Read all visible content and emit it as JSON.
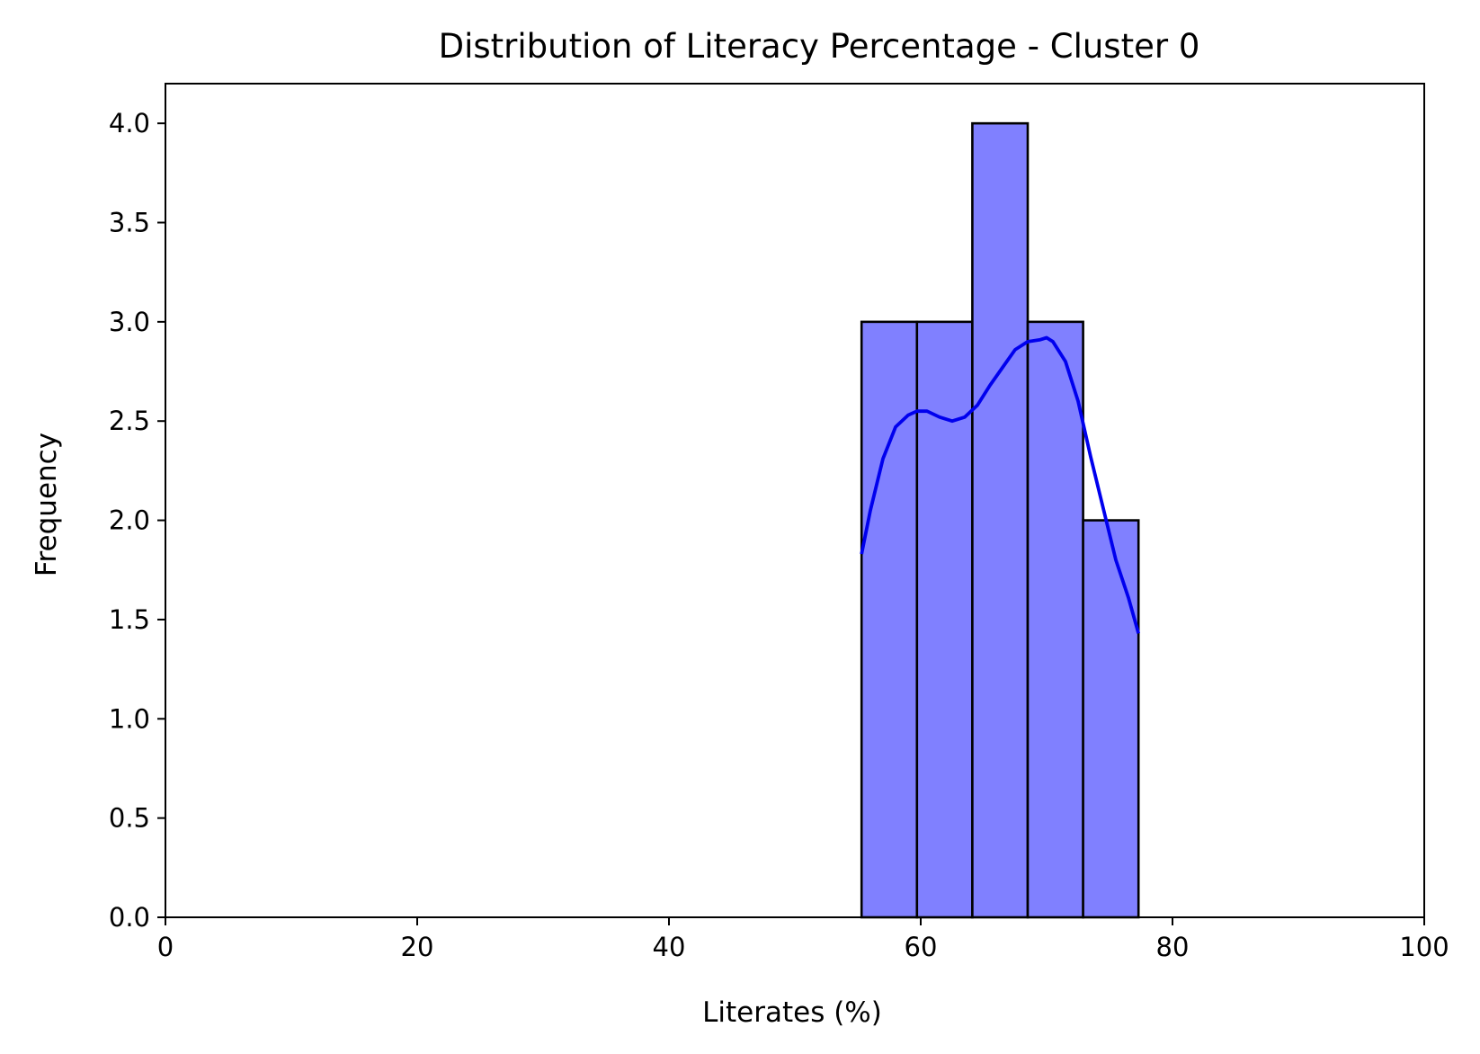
{
  "chart_data": {
    "type": "bar",
    "subtype": "histogram",
    "title": "Distribution of Literacy Percentage - Cluster 0",
    "xlabel": "Literates (%)",
    "ylabel": "Frequency",
    "xlim": [
      0,
      100
    ],
    "ylim": [
      0,
      4.2
    ],
    "xticks": [
      "0",
      "20",
      "40",
      "60",
      "80",
      "100"
    ],
    "yticks": [
      "0.0",
      "0.5",
      "1.0",
      "1.5",
      "2.0",
      "2.5",
      "3.0",
      "3.5",
      "4.0"
    ],
    "grid": false,
    "legend": "none",
    "bins": [
      {
        "x0": 55.3,
        "x1": 59.7,
        "count": 3
      },
      {
        "x0": 59.7,
        "x1": 64.1,
        "count": 3
      },
      {
        "x0": 64.1,
        "x1": 68.5,
        "count": 4
      },
      {
        "x0": 68.5,
        "x1": 72.9,
        "count": 3
      },
      {
        "x0": 72.9,
        "x1": 77.3,
        "count": 2
      }
    ],
    "kde": {
      "x": [
        55.3,
        56.0,
        57.0,
        58.0,
        59.0,
        59.7,
        60.5,
        61.5,
        62.5,
        63.5,
        64.5,
        65.5,
        66.5,
        67.5,
        68.5,
        69.5,
        70.0,
        70.5,
        71.5,
        72.5,
        73.5,
        74.5,
        75.5,
        76.5,
        77.3
      ],
      "y": [
        1.83,
        2.05,
        2.31,
        2.47,
        2.53,
        2.55,
        2.55,
        2.52,
        2.5,
        2.52,
        2.58,
        2.68,
        2.77,
        2.86,
        2.9,
        2.91,
        2.92,
        2.9,
        2.8,
        2.6,
        2.32,
        2.06,
        1.8,
        1.61,
        1.43
      ]
    },
    "colors": {
      "bar_fill": "#8080ff",
      "bar_edge": "#000000",
      "kde_line": "#0000ee",
      "axes": "#000000"
    }
  }
}
